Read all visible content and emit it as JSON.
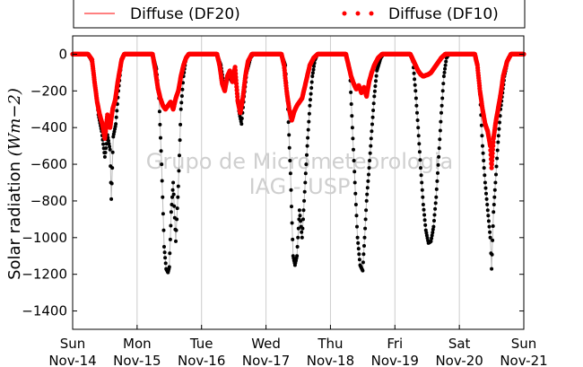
{
  "chart_data": {
    "type": "scatter",
    "title": "",
    "ylabel_text": "Solar radiation",
    "ylabel_unit": "(Wm−2)",
    "ylim": [
      -1500,
      100
    ],
    "yticks": [
      0,
      -200,
      -400,
      -600,
      -800,
      -1000,
      -1200,
      -1400
    ],
    "xlim": [
      0,
      7
    ],
    "xticks": [
      {
        "day": "Sun",
        "date": "Nov-14"
      },
      {
        "day": "Mon",
        "date": "Nov-15"
      },
      {
        "day": "Tue",
        "date": "Nov-16"
      },
      {
        "day": "Wed",
        "date": "Nov-17"
      },
      {
        "day": "Thu",
        "date": "Nov-18"
      },
      {
        "day": "Fri",
        "date": "Nov-19"
      },
      {
        "day": "Sat",
        "date": "Nov-20"
      },
      {
        "day": "Sun",
        "date": "Nov-21"
      }
    ],
    "grid": "vertical",
    "legend_position": "top",
    "watermark": [
      "Grupo de Micrometeorologia",
      "IAG - USP"
    ],
    "colors": {
      "DF20": "#ff0000",
      "DF10": "#ff0000",
      "DF10_points": "#ff0000",
      "DF20_points": "#000000",
      "DF20_line": "#bbbbbb",
      "grid": "#cccccc"
    },
    "series": [
      {
        "name": "Diffuse (DF20)",
        "style": "line",
        "points": [
          [
            0.0,
            0
          ],
          [
            0.24,
            0
          ],
          [
            0.3,
            -40
          ],
          [
            0.36,
            -200
          ],
          [
            0.4,
            -330
          ],
          [
            0.45,
            -420
          ],
          [
            0.5,
            -560
          ],
          [
            0.54,
            -440
          ],
          [
            0.58,
            -520
          ],
          [
            0.6,
            -790
          ],
          [
            0.63,
            -450
          ],
          [
            0.67,
            -380
          ],
          [
            0.71,
            -200
          ],
          [
            0.76,
            -30
          ],
          [
            0.8,
            0
          ],
          [
            1.0,
            0
          ],
          [
            1.24,
            0
          ],
          [
            1.3,
            -80
          ],
          [
            1.34,
            -240
          ],
          [
            1.38,
            -600
          ],
          [
            1.42,
            -1050
          ],
          [
            1.45,
            -1170
          ],
          [
            1.48,
            -1190
          ],
          [
            1.5,
            -1160
          ],
          [
            1.53,
            -860
          ],
          [
            1.56,
            -700
          ],
          [
            1.6,
            -1020
          ],
          [
            1.64,
            -720
          ],
          [
            1.68,
            -300
          ],
          [
            1.72,
            -120
          ],
          [
            1.76,
            -20
          ],
          [
            1.8,
            0
          ],
          [
            2.0,
            0
          ],
          [
            2.24,
            0
          ],
          [
            2.3,
            -60
          ],
          [
            2.36,
            -200
          ],
          [
            2.42,
            -110
          ],
          [
            2.47,
            -150
          ],
          [
            2.52,
            -70
          ],
          [
            2.58,
            -310
          ],
          [
            2.62,
            -380
          ],
          [
            2.66,
            -230
          ],
          [
            2.7,
            -100
          ],
          [
            2.76,
            -20
          ],
          [
            2.8,
            0
          ],
          [
            3.0,
            0
          ],
          [
            3.24,
            0
          ],
          [
            3.3,
            -60
          ],
          [
            3.34,
            -300
          ],
          [
            3.38,
            -650
          ],
          [
            3.42,
            -1100
          ],
          [
            3.45,
            -1150
          ],
          [
            3.48,
            -1100
          ],
          [
            3.52,
            -850
          ],
          [
            3.56,
            -1000
          ],
          [
            3.6,
            -750
          ],
          [
            3.64,
            -500
          ],
          [
            3.68,
            -280
          ],
          [
            3.72,
            -120
          ],
          [
            3.76,
            -30
          ],
          [
            3.8,
            0
          ],
          [
            4.0,
            0
          ],
          [
            4.24,
            0
          ],
          [
            4.3,
            -80
          ],
          [
            4.34,
            -400
          ],
          [
            4.38,
            -700
          ],
          [
            4.42,
            -1000
          ],
          [
            4.46,
            -1150
          ],
          [
            4.5,
            -1180
          ],
          [
            4.53,
            -1000
          ],
          [
            4.56,
            -800
          ],
          [
            4.6,
            -620
          ],
          [
            4.64,
            -420
          ],
          [
            4.68,
            -230
          ],
          [
            4.72,
            -90
          ],
          [
            4.78,
            -20
          ],
          [
            4.82,
            0
          ],
          [
            5.0,
            0
          ],
          [
            5.24,
            0
          ],
          [
            5.28,
            -40
          ],
          [
            5.32,
            -200
          ],
          [
            5.36,
            -400
          ],
          [
            5.4,
            -620
          ],
          [
            5.44,
            -820
          ],
          [
            5.48,
            -960
          ],
          [
            5.52,
            -1030
          ],
          [
            5.56,
            -1020
          ],
          [
            5.6,
            -940
          ],
          [
            5.64,
            -780
          ],
          [
            5.68,
            -560
          ],
          [
            5.72,
            -320
          ],
          [
            5.76,
            -120
          ],
          [
            5.8,
            -20
          ],
          [
            5.84,
            0
          ],
          [
            6.0,
            0
          ],
          [
            6.24,
            0
          ],
          [
            6.28,
            -60
          ],
          [
            6.32,
            -220
          ],
          [
            6.36,
            -500
          ],
          [
            6.4,
            -700
          ],
          [
            6.44,
            -850
          ],
          [
            6.48,
            -1000
          ],
          [
            6.5,
            -1170
          ],
          [
            6.53,
            -860
          ],
          [
            6.56,
            -700
          ],
          [
            6.6,
            -480
          ],
          [
            6.64,
            -300
          ],
          [
            6.7,
            -120
          ],
          [
            6.76,
            -20
          ],
          [
            6.8,
            0
          ],
          [
            7.0,
            0
          ]
        ]
      },
      {
        "name": "Diffuse (DF10)",
        "style": "points",
        "points": [
          [
            0.0,
            0
          ],
          [
            0.24,
            0
          ],
          [
            0.3,
            -30
          ],
          [
            0.34,
            -150
          ],
          [
            0.38,
            -260
          ],
          [
            0.42,
            -330
          ],
          [
            0.46,
            -380
          ],
          [
            0.5,
            -460
          ],
          [
            0.54,
            -330
          ],
          [
            0.58,
            -400
          ],
          [
            0.62,
            -300
          ],
          [
            0.66,
            -250
          ],
          [
            0.7,
            -150
          ],
          [
            0.76,
            -30
          ],
          [
            0.8,
            0
          ],
          [
            1.0,
            0
          ],
          [
            1.24,
            0
          ],
          [
            1.28,
            -80
          ],
          [
            1.32,
            -180
          ],
          [
            1.36,
            -240
          ],
          [
            1.4,
            -280
          ],
          [
            1.44,
            -300
          ],
          [
            1.48,
            -280
          ],
          [
            1.52,
            -260
          ],
          [
            1.56,
            -300
          ],
          [
            1.6,
            -240
          ],
          [
            1.64,
            -200
          ],
          [
            1.68,
            -120
          ],
          [
            1.72,
            -60
          ],
          [
            1.76,
            -20
          ],
          [
            1.8,
            0
          ],
          [
            2.0,
            0
          ],
          [
            2.24,
            0
          ],
          [
            2.28,
            -60
          ],
          [
            2.32,
            -160
          ],
          [
            2.36,
            -200
          ],
          [
            2.4,
            -120
          ],
          [
            2.44,
            -90
          ],
          [
            2.48,
            -150
          ],
          [
            2.52,
            -70
          ],
          [
            2.56,
            -250
          ],
          [
            2.6,
            -320
          ],
          [
            2.64,
            -240
          ],
          [
            2.68,
            -120
          ],
          [
            2.72,
            -40
          ],
          [
            2.78,
            0
          ],
          [
            3.0,
            0
          ],
          [
            3.24,
            0
          ],
          [
            3.28,
            -60
          ],
          [
            3.32,
            -200
          ],
          [
            3.36,
            -300
          ],
          [
            3.4,
            -360
          ],
          [
            3.44,
            -310
          ],
          [
            3.48,
            -280
          ],
          [
            3.52,
            -260
          ],
          [
            3.56,
            -240
          ],
          [
            3.6,
            -180
          ],
          [
            3.64,
            -120
          ],
          [
            3.68,
            -60
          ],
          [
            3.74,
            -20
          ],
          [
            3.8,
            0
          ],
          [
            4.0,
            0
          ],
          [
            4.24,
            0
          ],
          [
            4.28,
            -60
          ],
          [
            4.32,
            -120
          ],
          [
            4.36,
            -160
          ],
          [
            4.4,
            -190
          ],
          [
            4.44,
            -170
          ],
          [
            4.48,
            -210
          ],
          [
            4.52,
            -180
          ],
          [
            4.56,
            -230
          ],
          [
            4.6,
            -150
          ],
          [
            4.64,
            -100
          ],
          [
            4.68,
            -60
          ],
          [
            4.74,
            -20
          ],
          [
            4.8,
            0
          ],
          [
            5.0,
            0
          ],
          [
            5.24,
            0
          ],
          [
            5.28,
            -30
          ],
          [
            5.32,
            -60
          ],
          [
            5.36,
            -90
          ],
          [
            5.4,
            -110
          ],
          [
            5.44,
            -120
          ],
          [
            5.48,
            -115
          ],
          [
            5.52,
            -110
          ],
          [
            5.56,
            -100
          ],
          [
            5.6,
            -80
          ],
          [
            5.64,
            -60
          ],
          [
            5.68,
            -40
          ],
          [
            5.72,
            -20
          ],
          [
            5.78,
            0
          ],
          [
            6.0,
            0
          ],
          [
            6.24,
            0
          ],
          [
            6.28,
            -60
          ],
          [
            6.32,
            -200
          ],
          [
            6.36,
            -300
          ],
          [
            6.4,
            -380
          ],
          [
            6.44,
            -420
          ],
          [
            6.48,
            -500
          ],
          [
            6.5,
            -620
          ],
          [
            6.53,
            -460
          ],
          [
            6.56,
            -380
          ],
          [
            6.6,
            -300
          ],
          [
            6.64,
            -220
          ],
          [
            6.68,
            -120
          ],
          [
            6.74,
            -40
          ],
          [
            6.8,
            0
          ],
          [
            7.0,
            0
          ]
        ]
      }
    ]
  }
}
